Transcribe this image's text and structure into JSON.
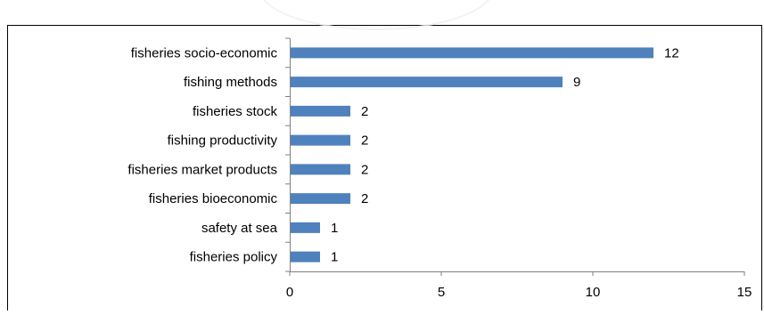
{
  "chart_data": {
    "type": "bar",
    "orientation": "horizontal",
    "categories": [
      "fisheries socio-economic",
      "fishing methods",
      "fisheries stock",
      "fishing productivity",
      "fisheries market products",
      "fisheries bioeconomic",
      "safety at sea",
      "fisheries policy"
    ],
    "values": [
      12,
      9,
      2,
      2,
      2,
      2,
      1,
      1
    ],
    "data_labels": [
      "12",
      "9",
      "2",
      "2",
      "2",
      "2",
      "1",
      "1"
    ],
    "title": "",
    "xlabel": "",
    "ylabel": "",
    "xlim": [
      0,
      15
    ],
    "x_ticks": [
      0,
      5,
      10,
      15
    ],
    "x_tick_labels": [
      "0",
      "5",
      "10",
      "15"
    ],
    "grid": false,
    "legend": "none",
    "bar_color": "#4F81BD"
  }
}
